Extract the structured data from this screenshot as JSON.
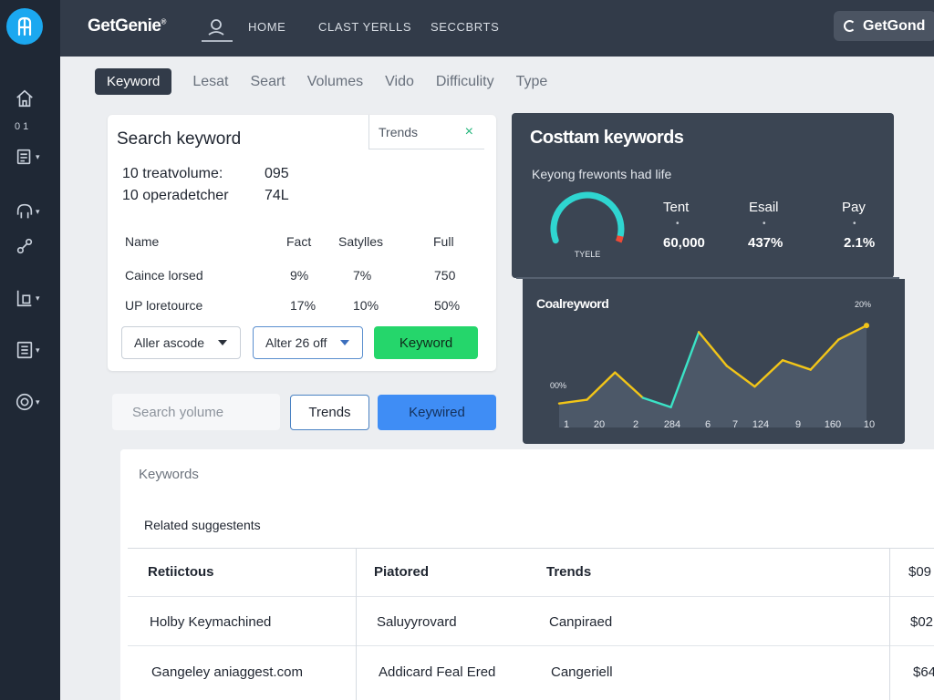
{
  "brand": {
    "name": "GetGenie",
    "mark": "®"
  },
  "topnav": {
    "items": [
      "HOME",
      "CLAST YERLLS",
      "SECCBRTS"
    ],
    "right_button": "GetGond"
  },
  "sidebar": {
    "count": "0 1"
  },
  "tabs": [
    "Keyword",
    "Lesat",
    "Seart",
    "Volumes",
    "Vido",
    "Difficulity",
    "Type"
  ],
  "search_card": {
    "title": "Search keyword",
    "tab_label": "Trends",
    "close": "×",
    "lines": [
      {
        "label": "10 treatvolume:",
        "value": "095"
      },
      {
        "label": "10 operadetcher",
        "value": "74L"
      }
    ],
    "columns": [
      "Name",
      "Fact",
      "Satylles",
      "Full"
    ],
    "rows": [
      [
        "Caince lorsed",
        "9%",
        "7%",
        "750"
      ],
      [
        "UP loretource",
        "17%",
        "10%",
        "50%"
      ]
    ],
    "dropdown1": "Aller ascode",
    "dropdown2": "Alter 26 off",
    "green_button": "Keyword"
  },
  "search_row": {
    "placeholder": "Search yolume",
    "outline_button": "Trends",
    "blue_button": "Keywired"
  },
  "stats_card": {
    "title": "Costtam keywords",
    "subtitle": "Keyong frewonts had life",
    "gauge_label": "TYELE",
    "gauge_value": 0.85,
    "stats": [
      {
        "label": "Tent",
        "value": "60,000"
      },
      {
        "label": "Esail",
        "value": "437%"
      },
      {
        "label": "Pay",
        "value": "2.1%"
      }
    ],
    "colors": {
      "bg": "#3b4553",
      "gauge_main": "#2fd5d0",
      "gauge_tip": "#ee4a36"
    }
  },
  "line_card": {
    "title": "Coalreyword",
    "start_label": "00%",
    "end_label": "20%",
    "x_ticks": [
      "1",
      "20",
      "2",
      "284",
      "6",
      "7",
      "124",
      "9",
      "160",
      "10"
    ],
    "points": [
      0.12,
      0.16,
      0.45,
      0.18,
      0.08,
      0.88,
      0.52,
      0.3,
      0.58,
      0.48,
      0.8,
      0.95
    ],
    "colors": {
      "line_yellow": "#f2c518",
      "line_teal": "#3be3c6",
      "fill": "#4c5868"
    }
  },
  "related": {
    "heading": "Keywords",
    "subheading": "Related suggestents",
    "columns": [
      "Retiictous",
      "Piatored",
      "Trends",
      "$09"
    ],
    "rows": [
      [
        "Holby Keymachined",
        "Saluyyrovard",
        "Canpiraed",
        "$02"
      ],
      [
        "Gangeley aniaggest.com",
        "Addicard Feal Ered",
        "Cangeriell",
        "$64"
      ]
    ]
  }
}
